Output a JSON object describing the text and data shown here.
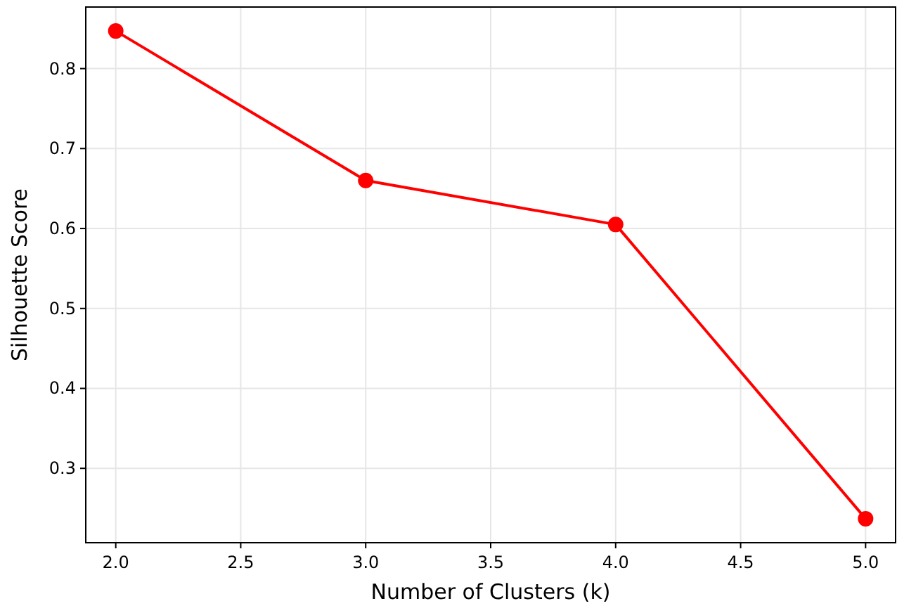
{
  "chart_data": {
    "type": "line",
    "xlabel": "Number of Clusters (k)",
    "ylabel": "Silhouette Score",
    "x": [
      2,
      3,
      4,
      5
    ],
    "series": [
      {
        "color": "#ff0000",
        "values": [
          0.847,
          0.66,
          0.605,
          0.237
        ]
      }
    ],
    "xlim": [
      1.88,
      5.12
    ],
    "ylim": [
      0.207,
      0.877
    ],
    "xticks": [
      {
        "value": 2,
        "label": "2.0"
      },
      {
        "value": 2.5,
        "label": "2.5"
      },
      {
        "value": 3,
        "label": "3.0"
      },
      {
        "value": 3.5,
        "label": "3.5"
      },
      {
        "value": 4,
        "label": "4.0"
      },
      {
        "value": 4.5,
        "label": "4.5"
      },
      {
        "value": 5,
        "label": "5.0"
      }
    ],
    "yticks": [
      0.3,
      0.4,
      0.5,
      0.6,
      0.7,
      0.8
    ],
    "grid": true,
    "marker": "circle",
    "line_style": "solid"
  }
}
